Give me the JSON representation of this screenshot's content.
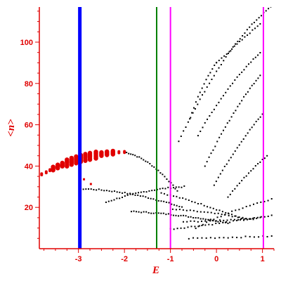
{
  "chart_data": {
    "type": "scatter",
    "xlabel": "E",
    "ylabel": "<n>",
    "xlim": [
      -3.85,
      1.25
    ],
    "ylim": [
      0,
      117
    ],
    "x_ticks": [
      -3,
      -2,
      -1,
      0,
      1
    ],
    "x_tick_labels": [
      "-3",
      "-2",
      "-1",
      "0",
      "1"
    ],
    "y_ticks": [
      20,
      40,
      60,
      80,
      100
    ],
    "y_tick_labels": [
      "20",
      "40",
      "60",
      "80",
      "100"
    ],
    "grid": false,
    "colors": {
      "axis": "#e00000",
      "series_red": "#e00000",
      "series_black": "#000000",
      "line_blue": "#0000ff",
      "line_green": "#008000",
      "line_magenta": "#ff00ff"
    },
    "vertical_lines": [
      {
        "x": -2.97,
        "color": "#0000ff",
        "style": "thick"
      },
      {
        "x": -1.3,
        "color": "#008000",
        "style": "thin"
      },
      {
        "x": -1.0,
        "color": "#ff00ff",
        "style": "thin"
      },
      {
        "x": 1.02,
        "color": "#ff00ff",
        "style": "thin"
      }
    ],
    "red_cluster": [
      [
        -3.8,
        36.0
      ],
      [
        -3.7,
        37.0
      ],
      [
        -3.62,
        38.0
      ],
      [
        -3.55,
        38.8
      ],
      [
        -3.45,
        39.8
      ],
      [
        -3.35,
        40.7
      ],
      [
        -3.25,
        41.5
      ],
      [
        -3.15,
        42.3
      ],
      [
        -3.05,
        43.0
      ],
      [
        -2.95,
        43.7
      ],
      [
        -2.85,
        44.2
      ],
      [
        -2.75,
        44.7
      ],
      [
        -2.62,
        45.3
      ],
      [
        -2.5,
        45.8
      ],
      [
        -2.38,
        46.2
      ],
      [
        -2.25,
        46.5
      ],
      [
        -2.12,
        46.7
      ],
      [
        -2.0,
        46.8
      ]
    ],
    "red_extra": [
      [
        -2.88,
        33.6
      ],
      [
        -2.73,
        31.3
      ]
    ],
    "black_series": [
      {
        "x0": -2.0,
        "y0": 46.8,
        "x1": -0.85,
        "y1": 28.0,
        "c": -0.7,
        "n": 26
      },
      {
        "x0": -2.95,
        "y0": 29.0,
        "x1": -0.75,
        "y1": 20.0,
        "c": -0.85,
        "n": 40
      },
      {
        "x0": -2.4,
        "y0": 22.5,
        "x1": -0.7,
        "y1": 30.0,
        "c": 0.75,
        "n": 30
      },
      {
        "x0": -1.85,
        "y0": 18.0,
        "x1": 0.25,
        "y1": 12.5,
        "c": -0.6,
        "n": 40
      },
      {
        "x0": -1.2,
        "y0": 27.0,
        "x1": 0.6,
        "y1": 14.0,
        "c": -0.25,
        "n": 28
      },
      {
        "x0": -0.95,
        "y0": 19.0,
        "x1": 0.8,
        "y1": 14.0,
        "c": -0.5,
        "n": 24
      },
      {
        "x0": -0.72,
        "y0": 13.0,
        "x1": 0.95,
        "y1": 15.0,
        "c": -0.4,
        "n": 22
      },
      {
        "x0": -0.45,
        "y0": 10.0,
        "x1": 1.2,
        "y1": 24.0,
        "c": 0.35,
        "n": 22
      },
      {
        "x0": -0.82,
        "y0": 52.0,
        "x1": 1.18,
        "y1": 117.0,
        "c": 0.45,
        "n": 40
      },
      {
        "x0": -0.58,
        "y0": 63.0,
        "x1": 0.0,
        "y1": 90.0,
        "c": 0.35,
        "n": 14
      },
      {
        "x0": 0.0,
        "y0": 90.0,
        "x1": 0.95,
        "y1": 109.0,
        "c": 0.0,
        "n": 18
      },
      {
        "x0": -0.4,
        "y0": 55.0,
        "x1": 0.95,
        "y1": 95.0,
        "c": 0.3,
        "n": 28
      },
      {
        "x0": -0.25,
        "y0": 40.0,
        "x1": 0.95,
        "y1": 84.0,
        "c": 0.25,
        "n": 28
      },
      {
        "x0": -0.05,
        "y0": 31.0,
        "x1": 1.0,
        "y1": 65.0,
        "c": 0.2,
        "n": 24
      },
      {
        "x0": 0.25,
        "y0": 25.0,
        "x1": 1.1,
        "y1": 45.0,
        "c": 0.2,
        "n": 18
      },
      {
        "x0": -1.0,
        "y0": 9.5,
        "x1": 1.2,
        "y1": 16.0,
        "c": -0.2,
        "n": 30
      },
      {
        "x0": -0.6,
        "y0": 5.0,
        "x1": 1.2,
        "y1": 6.0,
        "c": 0.0,
        "n": 20
      }
    ]
  }
}
